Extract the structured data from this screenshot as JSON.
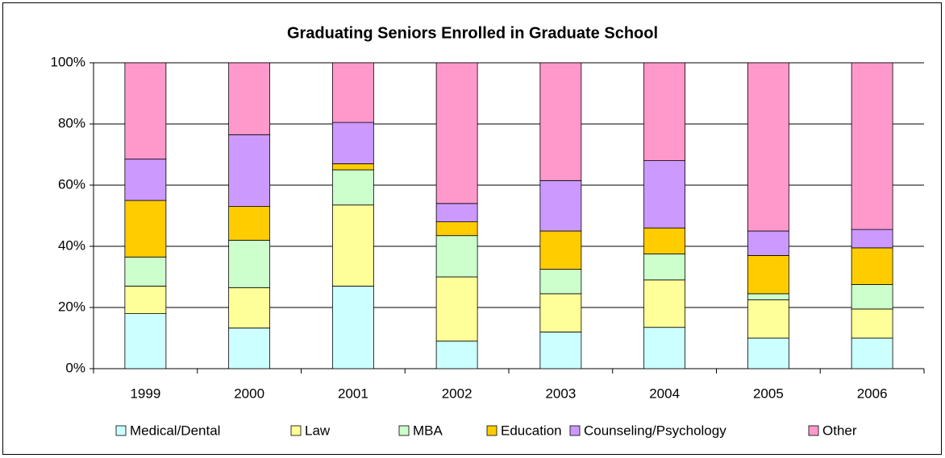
{
  "chart_data": {
    "type": "stacked_bar",
    "title": "Graduating Seniors Enrolled in Graduate School",
    "categories": [
      "1999",
      "2000",
      "2001",
      "2002",
      "2003",
      "2004",
      "2005",
      "2006"
    ],
    "series": [
      {
        "name": "Medical/Dental",
        "color": "#ccffff",
        "values": [
          18,
          13.3,
          27,
          9,
          12,
          13.5,
          10,
          10
        ]
      },
      {
        "name": "Law",
        "color": "#ffff99",
        "values": [
          9,
          13.2,
          26.5,
          21,
          12.5,
          15.5,
          12.5,
          9.5
        ]
      },
      {
        "name": "MBA",
        "color": "#ccffcc",
        "values": [
          9.5,
          15.5,
          11.5,
          13.5,
          8,
          8.5,
          2,
          8
        ]
      },
      {
        "name": "Education",
        "color": "#ffcc00",
        "values": [
          18.5,
          11,
          2,
          4.5,
          12.5,
          8.5,
          12.5,
          12
        ]
      },
      {
        "name": "Counseling/Psychology",
        "color": "#cc99ff",
        "values": [
          13.5,
          23.5,
          13.5,
          6,
          16.5,
          22,
          8,
          6
        ]
      },
      {
        "name": "Other",
        "color": "#ff99cc",
        "values": [
          31.5,
          23.5,
          19.5,
          46,
          38.5,
          32,
          55,
          54.5
        ]
      }
    ],
    "ylim": [
      0,
      100
    ],
    "yticks": [
      {
        "value": 0,
        "label": "0%"
      },
      {
        "value": 20,
        "label": "20%"
      },
      {
        "value": 40,
        "label": "40%"
      },
      {
        "value": 60,
        "label": "60%"
      },
      {
        "value": 80,
        "label": "80%"
      },
      {
        "value": 100,
        "label": "100%"
      }
    ],
    "grid": true,
    "legend": "bottom"
  }
}
